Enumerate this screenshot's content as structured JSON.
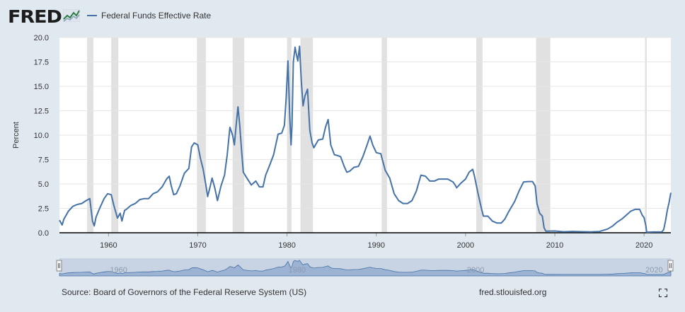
{
  "header": {
    "logo_text": "FRED",
    "legend_label": "Federal Funds Effective Rate"
  },
  "footer": {
    "source": "Source: Board of Governors of the Federal Reserve System (US)",
    "link": "fred.stlouisfed.org"
  },
  "icons": {
    "logo": "fred-graph-icon",
    "fullscreen": "fullscreen-icon"
  },
  "colors": {
    "series": "#4572a7",
    "recession": "#e1e1e1",
    "navigator_fill": "#9db3d3"
  },
  "chart_data": {
    "type": "line",
    "title": "",
    "ylabel": "Percent",
    "xlabel": "",
    "xlim": [
      1954.5,
      2023.0
    ],
    "ylim": [
      0,
      20
    ],
    "grid": true,
    "legend_position": "top-left",
    "y_ticks": [
      "0.0",
      "2.5",
      "5.0",
      "7.5",
      "10.0",
      "12.5",
      "15.0",
      "17.5",
      "20.0"
    ],
    "x_ticks": [
      "1960",
      "1970",
      "1980",
      "1990",
      "2000",
      "2010",
      "2020"
    ],
    "navigator_labels": [
      "1960",
      "1980",
      "2000",
      "2020"
    ],
    "recessions": [
      [
        1957.6,
        1958.3
      ],
      [
        1960.3,
        1961.1
      ],
      [
        1969.9,
        1970.9
      ],
      [
        1973.9,
        1975.2
      ],
      [
        1980.0,
        1980.5
      ],
      [
        1981.5,
        1982.9
      ],
      [
        1990.6,
        1991.2
      ],
      [
        2001.2,
        2001.9
      ],
      [
        2007.9,
        2009.5
      ],
      [
        2020.1,
        2020.3
      ]
    ],
    "series": [
      {
        "name": "Federal Funds Effective Rate",
        "x": [
          1954.5,
          1954.8,
          1955.0,
          1955.5,
          1956.0,
          1956.5,
          1957.0,
          1957.5,
          1957.9,
          1958.2,
          1958.4,
          1958.6,
          1959.0,
          1959.5,
          1959.9,
          1960.3,
          1960.6,
          1961.0,
          1961.3,
          1961.5,
          1961.8,
          1962.0,
          1962.5,
          1963.0,
          1963.5,
          1964.0,
          1964.5,
          1965.0,
          1965.5,
          1966.0,
          1966.5,
          1966.8,
          1967.0,
          1967.3,
          1967.6,
          1968.0,
          1968.5,
          1969.0,
          1969.3,
          1969.6,
          1970.0,
          1970.3,
          1970.6,
          1970.9,
          1971.1,
          1971.4,
          1971.6,
          1971.9,
          1972.2,
          1972.6,
          1973.0,
          1973.3,
          1973.6,
          1973.9,
          1974.1,
          1974.3,
          1974.5,
          1974.7,
          1974.9,
          1975.1,
          1975.5,
          1976.0,
          1976.5,
          1976.9,
          1977.3,
          1977.6,
          1978.0,
          1978.5,
          1979.0,
          1979.4,
          1979.7,
          1979.9,
          1980.1,
          1980.3,
          1980.45,
          1980.55,
          1980.7,
          1980.9,
          1981.0,
          1981.2,
          1981.4,
          1981.6,
          1981.8,
          1982.0,
          1982.3,
          1982.55,
          1982.8,
          1983.0,
          1983.5,
          1984.0,
          1984.3,
          1984.6,
          1984.9,
          1985.3,
          1985.7,
          1986.0,
          1986.4,
          1986.7,
          1987.0,
          1987.5,
          1988.0,
          1988.5,
          1989.0,
          1989.3,
          1989.6,
          1990.0,
          1990.5,
          1991.0,
          1991.5,
          1992.0,
          1992.5,
          1993.0,
          1993.5,
          1994.0,
          1994.5,
          1995.0,
          1995.5,
          1996.0,
          1996.5,
          1997.0,
          1997.5,
          1998.0,
          1998.6,
          1998.9,
          1999.0,
          1999.5,
          2000.0,
          2000.4,
          2000.8,
          2001.0,
          2001.4,
          2001.8,
          2002.0,
          2002.5,
          2002.9,
          2003.0,
          2003.5,
          2004.0,
          2004.4,
          2004.8,
          2005.5,
          2006.0,
          2006.5,
          2007.0,
          2007.5,
          2007.8,
          2008.0,
          2008.3,
          2008.6,
          2008.8,
          2009.0,
          2010.0,
          2011.0,
          2012.0,
          2013.0,
          2014.0,
          2015.0,
          2015.9,
          2016.5,
          2017.0,
          2017.5,
          2018.0,
          2018.5,
          2019.0,
          2019.5,
          2019.8,
          2020.0,
          2020.2,
          2020.3,
          2021.0,
          2022.0,
          2022.2,
          2022.4,
          2022.6,
          2022.8,
          2023.0
        ],
        "values": [
          1.3,
          0.8,
          1.4,
          2.2,
          2.7,
          2.9,
          3.0,
          3.3,
          3.5,
          1.2,
          0.7,
          1.6,
          2.5,
          3.5,
          4.0,
          3.9,
          2.8,
          1.5,
          2.0,
          1.2,
          2.3,
          2.4,
          2.8,
          3.0,
          3.4,
          3.5,
          3.5,
          4.0,
          4.2,
          4.7,
          5.5,
          5.8,
          4.9,
          3.9,
          4.0,
          4.8,
          6.1,
          6.6,
          8.8,
          9.2,
          9.0,
          7.6,
          6.5,
          4.9,
          3.7,
          4.8,
          5.6,
          4.6,
          3.3,
          4.8,
          5.9,
          8.0,
          10.8,
          10.0,
          9.0,
          11.0,
          12.9,
          11.0,
          8.5,
          6.2,
          5.6,
          4.9,
          5.3,
          4.7,
          4.7,
          5.9,
          6.8,
          8.0,
          10.1,
          10.2,
          11.0,
          13.8,
          17.6,
          12.0,
          9.0,
          10.9,
          17.5,
          19.0,
          18.5,
          17.6,
          19.1,
          15.5,
          13.0,
          14.0,
          14.7,
          10.5,
          9.2,
          8.7,
          9.5,
          9.6,
          10.8,
          11.6,
          9.0,
          8.0,
          7.9,
          7.8,
          6.8,
          6.2,
          6.3,
          6.7,
          6.8,
          7.8,
          9.1,
          9.9,
          9.0,
          8.2,
          8.1,
          6.4,
          5.6,
          4.0,
          3.3,
          3.0,
          3.0,
          3.3,
          4.3,
          5.9,
          5.8,
          5.3,
          5.3,
          5.5,
          5.5,
          5.5,
          5.2,
          4.8,
          4.6,
          5.1,
          5.5,
          6.2,
          6.5,
          5.8,
          4.0,
          2.4,
          1.7,
          1.7,
          1.3,
          1.2,
          1.0,
          1.0,
          1.4,
          2.1,
          3.2,
          4.3,
          5.2,
          5.25,
          5.25,
          4.8,
          3.0,
          2.0,
          1.7,
          0.5,
          0.16,
          0.18,
          0.1,
          0.14,
          0.11,
          0.09,
          0.13,
          0.38,
          0.7,
          1.1,
          1.4,
          1.8,
          2.2,
          2.4,
          2.4,
          1.8,
          1.55,
          0.7,
          0.06,
          0.08,
          0.09,
          0.33,
          1.2,
          2.3,
          3.1,
          4.1
        ]
      }
    ]
  }
}
